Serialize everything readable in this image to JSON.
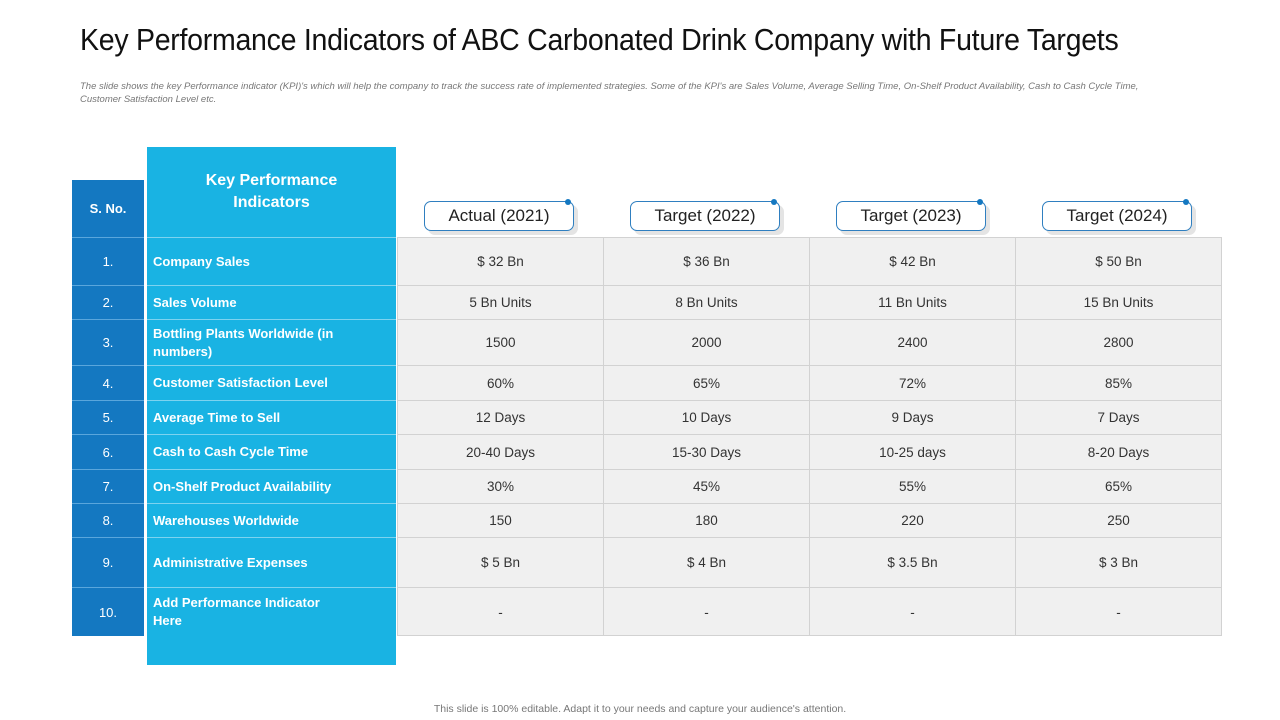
{
  "slide": {
    "title": "Key Performance Indicators of ABC Carbonated Drink Company with Future Targets",
    "subtitle": "The slide shows the key Performance indicator (KPI)'s which will help the company to track the success rate of implemented strategies. Some of the KPI's are Sales Volume, Average Selling Time, On-Shelf Product Availability, Cash to Cash Cycle Time, Customer Satisfaction Level etc.",
    "footer": "This slide is 100% editable. Adapt it to your needs and capture your audience's attention."
  },
  "colors": {
    "sno_blue": "#1478c1",
    "kpi_cyan": "#19b3e3",
    "cell_gray": "#f0f0f0"
  },
  "table": {
    "headers": {
      "sno": "S. No.",
      "kpi": "Key Performance Indicators",
      "columns": [
        "Actual (2021)",
        "Target (2022)",
        "Target (2023)",
        "Target (2024)"
      ]
    },
    "rows": [
      {
        "sno": "1.",
        "kpi": "Company Sales",
        "values": [
          "$ 32 Bn",
          "$ 36 Bn",
          "$ 42 Bn",
          "$ 50 Bn"
        ]
      },
      {
        "sno": "2.",
        "kpi": "Sales Volume",
        "values": [
          "5 Bn Units",
          "8 Bn Units",
          "11 Bn Units",
          "15 Bn Units"
        ]
      },
      {
        "sno": "3.",
        "kpi": "Bottling Plants Worldwide (in numbers)",
        "values": [
          "1500",
          "2000",
          "2400",
          "2800"
        ]
      },
      {
        "sno": "4.",
        "kpi": "Customer Satisfaction Level",
        "values": [
          "60%",
          "65%",
          "72%",
          "85%"
        ]
      },
      {
        "sno": "5.",
        "kpi": "Average Time to Sell",
        "values": [
          "12 Days",
          "10 Days",
          "9 Days",
          "7 Days"
        ]
      },
      {
        "sno": "6.",
        "kpi": "Cash to Cash Cycle Time",
        "values": [
          "20-40 Days",
          "15-30 Days",
          "10-25 days",
          "8-20 Days"
        ]
      },
      {
        "sno": "7.",
        "kpi": "On-Shelf Product Availability",
        "values": [
          "30%",
          "45%",
          "55%",
          "65%"
        ]
      },
      {
        "sno": "8.",
        "kpi": "Warehouses Worldwide",
        "values": [
          "150",
          "180",
          "220",
          "250"
        ]
      },
      {
        "sno": "9.",
        "kpi": "Administrative Expenses",
        "values": [
          "$ 5 Bn",
          "$ 4 Bn",
          "$ 3.5 Bn",
          "$ 3 Bn"
        ]
      },
      {
        "sno": "10.",
        "kpi": "Add Performance Indicator Here",
        "values": [
          "-",
          "-",
          "-",
          "-"
        ]
      }
    ]
  }
}
